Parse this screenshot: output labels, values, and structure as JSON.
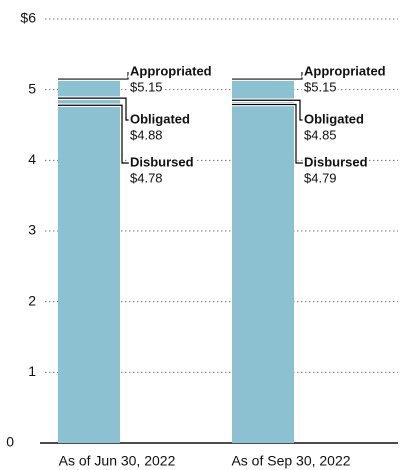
{
  "chart_data": {
    "type": "bar",
    "categories": [
      "As of Jun 30, 2022",
      "As of Sep 30, 2022"
    ],
    "series": [
      {
        "name": "Appropriated",
        "color": "#8cc1d1",
        "values": [
          5.15,
          5.15
        ],
        "value_labels": [
          "$5.15",
          "$5.15"
        ]
      },
      {
        "name": "Obligated",
        "color": "#000000",
        "values": [
          4.88,
          4.85
        ],
        "value_labels": [
          "$4.88",
          "$4.85"
        ]
      },
      {
        "name": "Disbursed",
        "color": "#000000",
        "values": [
          4.78,
          4.79
        ],
        "value_labels": [
          "$4.78",
          "$4.79"
        ]
      }
    ],
    "ylim": [
      0,
      6
    ],
    "yticks": [
      0,
      1,
      2,
      3,
      4,
      5,
      {
        "value": 6,
        "label": "$6"
      }
    ],
    "grid": true
  }
}
